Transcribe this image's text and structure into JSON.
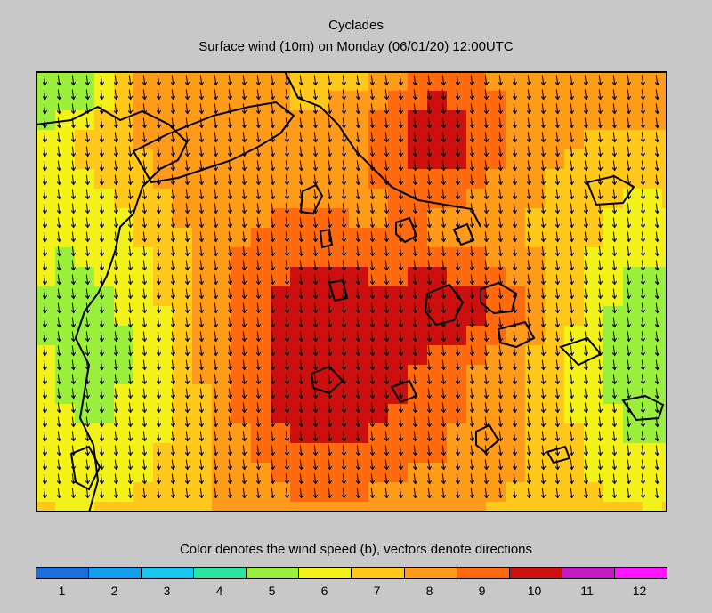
{
  "title": "Cyclades",
  "subtitle": "Surface wind (10m) on Monday (06/01/20) 12:00UTC",
  "legend": {
    "caption": "Color denotes the wind speed (b), vectors denote directions",
    "levels": [
      "1",
      "2",
      "3",
      "4",
      "5",
      "6",
      "7",
      "8",
      "9",
      "10",
      "11",
      "12"
    ],
    "colors": [
      "#1a6fe0",
      "#139ef0",
      "#19c8f0",
      "#2be6a0",
      "#9aee3c",
      "#f2f21a",
      "#ffc81a",
      "#ff9a1a",
      "#ff6a10",
      "#cc0f0f",
      "#c41ac4",
      "#ff14ff"
    ]
  },
  "map": {
    "region": "Cyclades",
    "variable": "Surface wind (10m)",
    "units": "Beaufort",
    "wind_direction": "from north (vectors point south)",
    "speed_range": [
      4,
      12
    ]
  }
}
